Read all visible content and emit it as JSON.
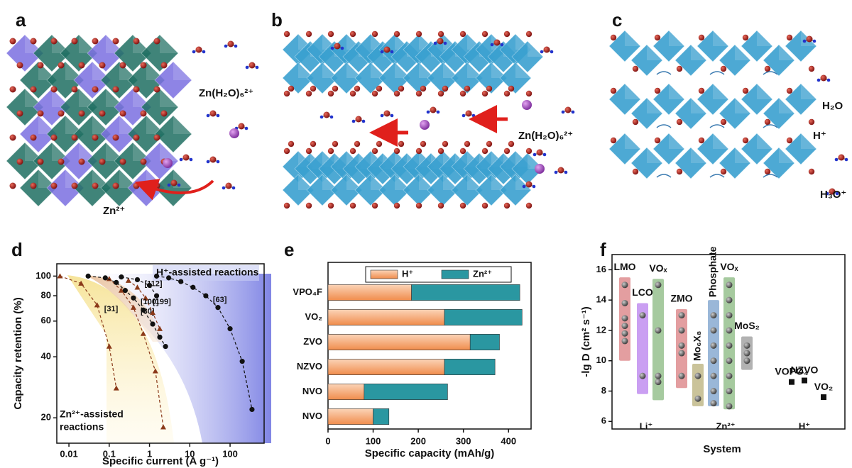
{
  "illustrations": {
    "a": {
      "label": "a",
      "texts": [
        "Zn(H₂O)₆²⁺",
        "Zn²⁺"
      ]
    },
    "b": {
      "label": "b",
      "texts": [
        "Zn(H₂O)₆²⁺"
      ]
    },
    "c": {
      "label": "c",
      "texts": [
        "H₂O",
        "H⁺",
        "H₃O⁺"
      ]
    }
  },
  "chart_data": [
    {
      "type": "line",
      "panel": "d",
      "ylabel": "Capacity retention (%)",
      "xlabel": "Specific current (A g⁻¹)",
      "log_x": true,
      "log_y": true,
      "xlim": [
        0.005,
        700
      ],
      "ylim": [
        15,
        115
      ],
      "xticks": [
        0.01,
        0.1,
        1,
        10,
        100
      ],
      "yticks": [
        20,
        40,
        60,
        80,
        100
      ],
      "annotations": [
        "H⁺-assisted reactions",
        "Zn²⁺-assisted",
        "reactions"
      ],
      "series": [
        {
          "name": "[31]",
          "color": "#8b3a1a",
          "marker": "triangle",
          "x": [
            0.006,
            0.02,
            0.05,
            0.1,
            0.15
          ],
          "values": [
            100,
            92,
            72,
            45,
            28
          ]
        },
        {
          "name": "[30]",
          "color": "#8b3a1a",
          "marker": "triangle",
          "x": [
            0.1,
            0.2,
            0.4,
            0.7,
            1.4,
            2.2
          ],
          "values": [
            97,
            85,
            70,
            52,
            34,
            18
          ]
        },
        {
          "name": "[199]",
          "color": "#8b3a1a",
          "marker": "triangle",
          "x": [
            0.3,
            0.5,
            0.8,
            1.2,
            1.8
          ],
          "values": [
            95,
            88,
            78,
            66,
            55
          ]
        },
        {
          "name": "[100]",
          "color": "#111111",
          "marker": "circle",
          "x": [
            0.03,
            0.08,
            0.15,
            0.25,
            0.4,
            0.7,
            1.2,
            1.8,
            2.5
          ],
          "values": [
            100,
            98,
            93,
            85,
            78,
            68,
            58,
            50,
            45
          ]
        },
        {
          "name": "[112]",
          "color": "#111111",
          "marker": "circle",
          "x": [
            0.2,
            0.5,
            1,
            1.5
          ],
          "values": [
            99,
            96,
            90,
            80
          ]
        },
        {
          "name": "[63]",
          "color": "#111111",
          "marker": "circle",
          "x": [
            1.5,
            3,
            6,
            12,
            25,
            50,
            100,
            200,
            350
          ],
          "values": [
            100,
            98,
            94,
            88,
            80,
            70,
            55,
            38,
            22
          ]
        }
      ]
    },
    {
      "type": "bar",
      "panel": "e",
      "orientation": "horizontal",
      "stacked": true,
      "xlabel": "Specific capacity (mAh/g)",
      "categories": [
        "VPO₄F",
        "VO₂",
        "ZVO",
        "NZVO",
        "NVO",
        "NVO"
      ],
      "xlim": [
        0,
        450
      ],
      "xticks": [
        0,
        100,
        200,
        300,
        400
      ],
      "series": [
        {
          "name": "H⁺",
          "color": "#f4a270",
          "values": [
            185,
            258,
            315,
            258,
            80,
            100
          ]
        },
        {
          "name": "Zn²⁺",
          "color": "#2a97a1",
          "values": [
            240,
            172,
            65,
            112,
            185,
            35
          ]
        }
      ]
    },
    {
      "type": "range",
      "panel": "f",
      "ylabel": "-lg D (cm² s⁻¹)",
      "xlabel": "System",
      "ylim": [
        5.5,
        17
      ],
      "yticks": [
        6,
        8,
        10,
        12,
        14,
        16
      ],
      "groups": [
        {
          "name": "Li⁺",
          "series": [
            {
              "name": "LMO",
              "color": "#c0282d",
              "range": [
                10,
                15.5
              ],
              "values": [
                15,
                13.8,
                12.8,
                12.3,
                11.8,
                11.3
              ]
            },
            {
              "name": "LCO",
              "color": "#8a2be2",
              "range": [
                7.8,
                13.8
              ],
              "values": [
                13,
                9
              ]
            },
            {
              "name": "VOₓ",
              "color": "#3a8a2a",
              "range": [
                7.4,
                15.4
              ],
              "values": [
                15,
                12,
                9,
                8.6
              ]
            }
          ]
        },
        {
          "name": "Zn²⁺",
          "series": [
            {
              "name": "ZMO",
              "color": "#c0282d",
              "range": [
                8.2,
                13.4
              ],
              "values": [
                13,
                12,
                11,
                10.5,
                9
              ]
            },
            {
              "name": "Mo₆X₈",
              "color": "#8a7a20",
              "range": [
                7,
                9.8
              ],
              "values": [
                9,
                7.5
              ]
            },
            {
              "name": "Phosphate",
              "color": "#1f5fa8",
              "range": [
                7,
                14
              ],
              "values": [
                13,
                12,
                11,
                10,
                9,
                8,
                7.2
              ]
            },
            {
              "name": "VOₓ",
              "color": "#3a8a2a",
              "range": [
                6.8,
                15.5
              ],
              "values": [
                15,
                14,
                13,
                12,
                11,
                10,
                9,
                8,
                7
              ]
            },
            {
              "name": "MoS₂",
              "color": "#555555",
              "range": [
                9.4,
                11.6
              ],
              "values": [
                11,
                10.5,
                10
              ]
            }
          ]
        },
        {
          "name": "H⁺",
          "series": [
            {
              "name": "VOPO₄",
              "color": "#1f4f98",
              "marker": "square",
              "values": [
                8.6
              ]
            },
            {
              "name": "NZVO",
              "color": "#2a8a6a",
              "marker": "square",
              "values": [
                8.7
              ]
            },
            {
              "name": "VO₂",
              "color": "#6a8a10",
              "marker": "square",
              "values": [
                7.6
              ]
            }
          ]
        }
      ]
    }
  ]
}
